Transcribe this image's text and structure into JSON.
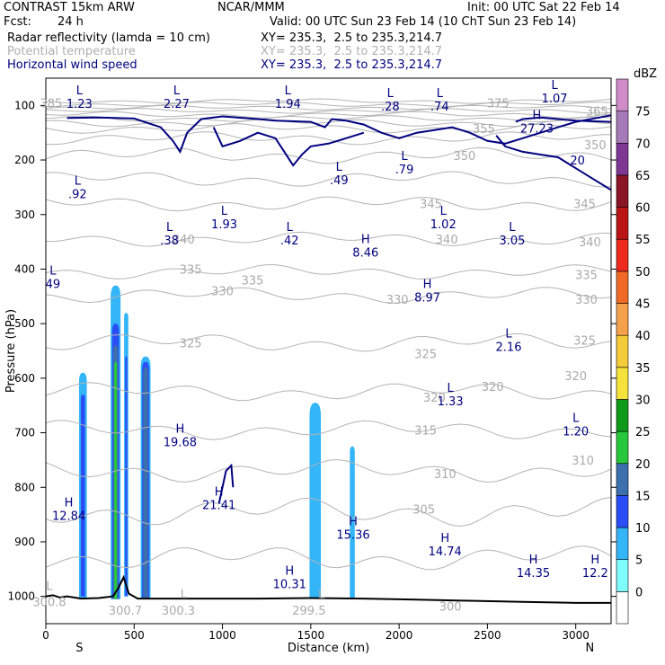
{
  "header": {
    "model": "CONTRAST 15km ARW",
    "center": "NCAR/MMM",
    "init": "Init: 00 UTC Sat 22 Feb 14",
    "fcst_label": "Fcst:",
    "fcst_value": "24 h",
    "valid": "Valid: 00 UTC Sun 23 Feb 14 (10 ChT Sun 23 Feb 14)",
    "fields": [
      {
        "name": "Radar reflectivity (lamda = 10 cm)",
        "xy": "XY= 235.3,  2.5 to 235.3,214.7",
        "color": "#000000"
      },
      {
        "name": "Potential temperature",
        "xy": "XY= 235.3,  2.5 to 235.3,214.7",
        "color": "#b8b8b8"
      },
      {
        "name": "Horizontal wind speed",
        "xy": "XY= 235.3,  2.5 to 235.3,214.7",
        "color": "#000080"
      }
    ]
  },
  "chart_data": {
    "type": "cross-section",
    "xlabel": "Distance (km)",
    "ylabel": "Pressure (hPa)",
    "xlim": [
      0,
      3200
    ],
    "ylim": [
      1050,
      50
    ],
    "x_ticks": [
      0,
      500,
      1000,
      1500,
      2000,
      2500,
      3000
    ],
    "y_ticks": [
      100,
      200,
      300,
      400,
      500,
      600,
      700,
      800,
      900,
      1000
    ],
    "direction_left": "S",
    "direction_right": "N",
    "colorbar": {
      "unit": "dBZ",
      "levels": [
        0,
        5,
        10,
        15,
        20,
        25,
        30,
        35,
        40,
        45,
        50,
        55,
        60,
        65,
        70,
        75
      ],
      "colors": [
        "#ffffff",
        "#7ffdfd",
        "#33b5f8",
        "#2a4ef6",
        "#3c6fae",
        "#27c83b",
        "#0f9a1a",
        "#f5e33b",
        "#f6cb3a",
        "#f5a04b",
        "#f06a26",
        "#ee2a1e",
        "#bb1414",
        "#8a1525",
        "#7f3794",
        "#a679b8",
        "#cf8cc8"
      ]
    },
    "theta_labels": [
      {
        "text": "385",
        "x": 30,
        "p": 95
      },
      {
        "text": "375",
        "x": 2560,
        "p": 95
      },
      {
        "text": "365",
        "x": 3120,
        "p": 110
      },
      {
        "text": "355",
        "x": 2480,
        "p": 142
      },
      {
        "text": "350",
        "x": 3110,
        "p": 172
      },
      {
        "text": "350",
        "x": 2370,
        "p": 192
      },
      {
        "text": "345",
        "x": 2180,
        "p": 280
      },
      {
        "text": "345",
        "x": 3050,
        "p": 280
      },
      {
        "text": "340",
        "x": 780,
        "p": 345
      },
      {
        "text": "340",
        "x": 2270,
        "p": 345
      },
      {
        "text": "340",
        "x": 3080,
        "p": 350
      },
      {
        "text": "335",
        "x": 820,
        "p": 400
      },
      {
        "text": "335",
        "x": 1170,
        "p": 420
      },
      {
        "text": "335",
        "x": 3060,
        "p": 410
      },
      {
        "text": "330",
        "x": 1000,
        "p": 440
      },
      {
        "text": "330",
        "x": 1990,
        "p": 455
      },
      {
        "text": "330",
        "x": 3060,
        "p": 455
      },
      {
        "text": "325",
        "x": 820,
        "p": 535
      },
      {
        "text": "325",
        "x": 2150,
        "p": 555
      },
      {
        "text": "325",
        "x": 3050,
        "p": 530
      },
      {
        "text": "320",
        "x": 2200,
        "p": 635
      },
      {
        "text": "320",
        "x": 2530,
        "p": 615
      },
      {
        "text": "320",
        "x": 3000,
        "p": 595
      },
      {
        "text": "315",
        "x": 2150,
        "p": 695
      },
      {
        "text": "310",
        "x": 2260,
        "p": 775
      },
      {
        "text": "310",
        "x": 3040,
        "p": 750
      },
      {
        "text": "305",
        "x": 2140,
        "p": 840
      },
      {
        "text": "300.8",
        "x": 20,
        "p": 1010
      },
      {
        "text": "300.7",
        "x": 450,
        "p": 1025
      },
      {
        "text": "300.3",
        "x": 750,
        "p": 1025
      },
      {
        "text": "299.5",
        "x": 1490,
        "p": 1025
      },
      {
        "text": "300",
        "x": 2290,
        "p": 1018
      },
      {
        "text": "L",
        "x": 20,
        "p": 980
      },
      {
        "text": "L",
        "x": 780,
        "p": 995
      },
      {
        "text": "L",
        "x": 1560,
        "p": 995
      }
    ],
    "wind_extrema": [
      {
        "type": "L",
        "value": "1.23",
        "x": 190,
        "p": 80
      },
      {
        "type": "L",
        "value": "2.27",
        "x": 740,
        "p": 80
      },
      {
        "type": "L",
        "value": "1.94",
        "x": 1370,
        "p": 80
      },
      {
        "type": "L",
        "value": ".28",
        "x": 1950,
        "p": 85
      },
      {
        "type": "L",
        "value": ".74",
        "x": 2230,
        "p": 85
      },
      {
        "type": "L",
        "value": "1.07",
        "x": 2880,
        "p": 70
      },
      {
        "type": "H",
        "value": "27.23",
        "x": 2780,
        "p": 125
      },
      {
        "type": "L",
        "value": ".49",
        "x": 1660,
        "p": 220
      },
      {
        "type": "L",
        "value": ".79",
        "x": 2030,
        "p": 200
      },
      {
        "type": "L",
        "value": ".92",
        "x": 180,
        "p": 245
      },
      {
        "type": "L",
        "value": "1.93",
        "x": 1010,
        "p": 300
      },
      {
        "type": "L",
        "value": "1.02",
        "x": 2250,
        "p": 300
      },
      {
        "type": "L",
        "value": ".38",
        "x": 700,
        "p": 330
      },
      {
        "type": "L",
        "value": ".42",
        "x": 1380,
        "p": 330
      },
      {
        "type": "L",
        "value": "3.05",
        "x": 2640,
        "p": 330
      },
      {
        "type": "H",
        "value": "8.46",
        "x": 1810,
        "p": 352
      },
      {
        "type": "L",
        "value": "49",
        "x": 40,
        "p": 410
      },
      {
        "type": "H",
        "value": "8.97",
        "x": 2160,
        "p": 435
      },
      {
        "type": "L",
        "value": "2.16",
        "x": 2620,
        "p": 525
      },
      {
        "type": "L",
        "value": "1.33",
        "x": 2290,
        "p": 625
      },
      {
        "type": "L",
        "value": "1.20",
        "x": 3000,
        "p": 680
      },
      {
        "type": "H",
        "value": "19.68",
        "x": 760,
        "p": 700
      },
      {
        "type": "H",
        "value": "21.41",
        "x": 980,
        "p": 815
      },
      {
        "type": "H",
        "value": "12.84",
        "x": 130,
        "p": 835
      },
      {
        "type": "H",
        "value": "15.36",
        "x": 1740,
        "p": 870
      },
      {
        "type": "H",
        "value": "14.74",
        "x": 2260,
        "p": 900
      },
      {
        "type": "H",
        "value": "10.31",
        "x": 1380,
        "p": 960
      },
      {
        "type": "H",
        "value": "14.35",
        "x": 2760,
        "p": 940
      },
      {
        "type": "H",
        "value": "12.2",
        "x": 3110,
        "p": 940
      }
    ],
    "wind_contour_labels": [
      {
        "text": "20",
        "x": 3010,
        "p": 200
      }
    ],
    "reflectivity_columns": [
      {
        "x_center": 210,
        "half_width": 22,
        "top_p": 590,
        "bottom_p": 1005,
        "level": 5
      },
      {
        "x_center": 210,
        "half_width": 12,
        "top_p": 630,
        "bottom_p": 1000,
        "level": 10
      },
      {
        "x_center": 395,
        "half_width": 28,
        "top_p": 430,
        "bottom_p": 1005,
        "level": 5
      },
      {
        "x_center": 395,
        "half_width": 20,
        "top_p": 500,
        "bottom_p": 1005,
        "level": 10
      },
      {
        "x_center": 395,
        "half_width": 14,
        "top_p": 540,
        "bottom_p": 1005,
        "level": 15
      },
      {
        "x_center": 395,
        "half_width": 8,
        "top_p": 570,
        "bottom_p": 1005,
        "level": 20
      },
      {
        "x_center": 455,
        "half_width": 12,
        "top_p": 480,
        "bottom_p": 1000,
        "level": 5
      },
      {
        "x_center": 455,
        "half_width": 6,
        "top_p": 560,
        "bottom_p": 1000,
        "level": 10
      },
      {
        "x_center": 565,
        "half_width": 28,
        "top_p": 560,
        "bottom_p": 1005,
        "level": 5
      },
      {
        "x_center": 565,
        "half_width": 20,
        "top_p": 570,
        "bottom_p": 1005,
        "level": 10
      },
      {
        "x_center": 565,
        "half_width": 14,
        "top_p": 580,
        "bottom_p": 1005,
        "level": 15
      },
      {
        "x_center": 1525,
        "half_width": 32,
        "top_p": 645,
        "bottom_p": 1005,
        "level": 5
      },
      {
        "x_center": 1735,
        "half_width": 14,
        "top_p": 725,
        "bottom_p": 1005,
        "level": 5
      }
    ],
    "terrain": [
      [
        0,
        1000
      ],
      [
        40,
        998
      ],
      [
        80,
        1002
      ],
      [
        120,
        1000
      ],
      [
        200,
        1004
      ],
      [
        300,
        1003
      ],
      [
        380,
        1000
      ],
      [
        410,
        985
      ],
      [
        440,
        965
      ],
      [
        470,
        995
      ],
      [
        520,
        1004
      ],
      [
        700,
        1004
      ],
      [
        900,
        1004
      ],
      [
        1200,
        1004
      ],
      [
        1500,
        1003
      ],
      [
        1800,
        1004
      ],
      [
        2100,
        1006
      ],
      [
        2400,
        1008
      ],
      [
        2700,
        1010
      ],
      [
        3000,
        1012
      ],
      [
        3200,
        1012
      ]
    ]
  }
}
